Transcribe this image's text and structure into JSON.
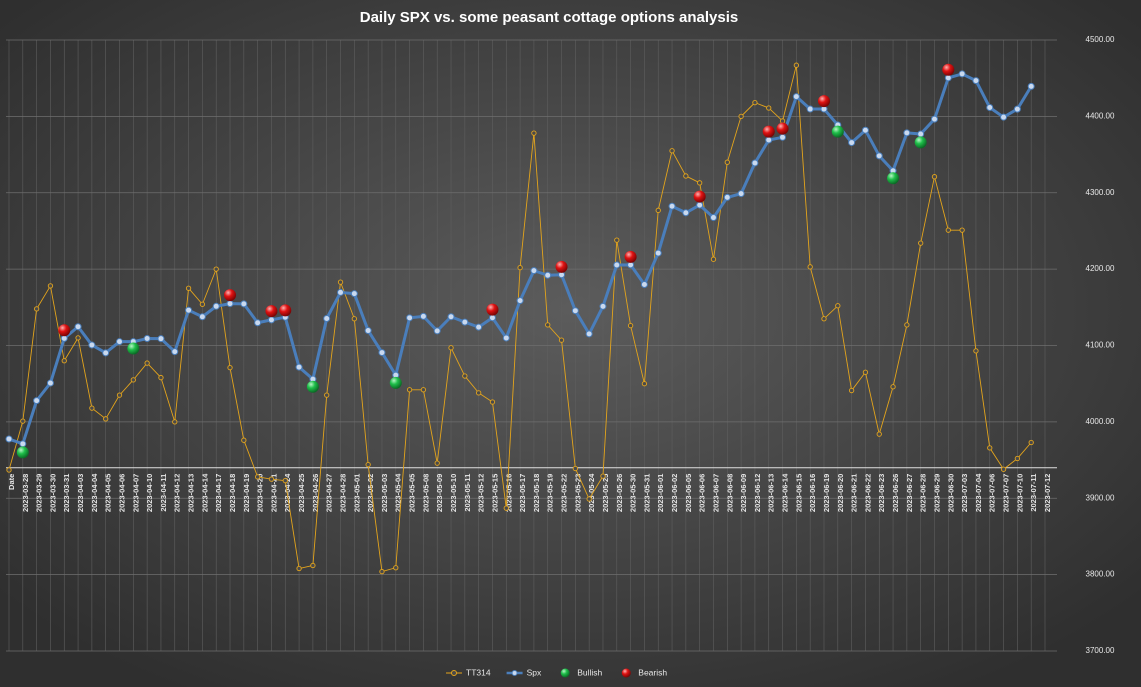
{
  "chart_data": {
    "type": "line",
    "title": "Daily SPX vs. some peasant cottage options analysis",
    "categories": [
      "Date",
      "2023-03-28",
      "2023-03-29",
      "2023-03-30",
      "2023-03-31",
      "2023-04-03",
      "2023-04-04",
      "2023-04-05",
      "2023-04-06",
      "2023-04-07",
      "2023-04-10",
      "2023-04-11",
      "2023-04-12",
      "2023-04-13",
      "2023-04-14",
      "2023-04-17",
      "2023-04-18",
      "2023-04-19",
      "2023-04-20",
      "2023-04-21",
      "2023-04-24",
      "2023-04-25",
      "2023-04-26",
      "2023-04-27",
      "2023-04-28",
      "2023-05-01",
      "2023-05-02",
      "2023-05-03",
      "2023-05-04",
      "2023-05-05",
      "2023-05-08",
      "2023-05-09",
      "2023-05-10",
      "2023-05-11",
      "2023-05-12",
      "2023-05-15",
      "2023-05-16",
      "2023-05-17",
      "2023-05-18",
      "2023-05-19",
      "2023-05-22",
      "2023-05-23",
      "2023-05-24",
      "2023-05-25",
      "2023-05-26",
      "2023-05-30",
      "2023-05-31",
      "2023-06-01",
      "2023-06-02",
      "2023-06-05",
      "2023-06-06",
      "2023-06-07",
      "2023-06-08",
      "2023-06-09",
      "2023-06-12",
      "2023-06-13",
      "2023-06-14",
      "2023-06-15",
      "2023-06-16",
      "2023-06-19",
      "2023-06-20",
      "2023-06-21",
      "2023-06-22",
      "2023-06-23",
      "2023-06-26",
      "2023-06-27",
      "2023-06-28",
      "2023-06-29",
      "2023-06-30",
      "2023-07-03",
      "2023-07-04",
      "2023-07-06",
      "2023-07-07",
      "2023-07-10",
      "2023-07-11",
      "2023-07-12"
    ],
    "series": [
      {
        "name": "TT314",
        "color": "#e3a41c",
        "style": "line-thin",
        "values": [
          3937,
          4001,
          4148,
          4178,
          4080,
          4110,
          4018,
          4004,
          4035,
          4055,
          4077,
          4058,
          4000,
          4175,
          4154,
          4200,
          4071,
          3976,
          3928,
          3925,
          3923,
          3808,
          3812,
          4035,
          4183,
          4135,
          3944,
          3804,
          3809,
          4042,
          4042,
          3946,
          4097,
          4060,
          4038,
          4026,
          3887,
          4202,
          4378,
          4127,
          4107,
          3939,
          3899,
          3929,
          4238,
          4126,
          4050,
          4277,
          4355,
          4322,
          4313,
          4213,
          4340,
          4400,
          4418,
          4411,
          4394,
          4467,
          4203,
          4135,
          4152,
          4041,
          4065,
          3984,
          4046,
          4127,
          4234,
          4321,
          4251,
          4251,
          4093,
          3966,
          3938,
          3952,
          3973,
          null
        ]
      },
      {
        "name": "Spx",
        "color": "#4a7ebb",
        "style": "line-thick",
        "values": [
          3977.53,
          3971.27,
          4027.81,
          4050.83,
          4109.31,
          4124.51,
          4100.6,
          4090.38,
          4105.02,
          4105.02,
          4109.11,
          4108.94,
          4091.95,
          4146.22,
          4137.64,
          4151.32,
          4154.87,
          4154.52,
          4129.79,
          4133.52,
          4137.04,
          4071.63,
          4055.99,
          4135.35,
          4169.48,
          4167.87,
          4119.58,
          4090.75,
          4061.22,
          4136.25,
          4138.12,
          4119.17,
          4137.64,
          4130.62,
          4124.08,
          4136.28,
          4109.9,
          4158.77,
          4198.05,
          4191.98,
          4192.63,
          4145.58,
          4115.24,
          4151.28,
          4205.45,
          4205.52,
          4179.83,
          4221.02,
          4282.37,
          4273.79,
          4283.85,
          4267.52,
          4293.93,
          4298.86,
          4338.93,
          4369.01,
          4372.59,
          4425.84,
          4409.59,
          4409.59,
          4388.71,
          4365.69,
          4381.89,
          4348.33,
          4328.82,
          4378.41,
          4376.86,
          4396.44,
          4450.38,
          4455.59,
          4446.82,
          4411.59,
          4398.95,
          4409.53,
          4439.26,
          null
        ]
      },
      {
        "name": "Bullish",
        "color": "#1fbf4a",
        "style": "markers",
        "values": [
          null,
          3960,
          null,
          null,
          null,
          null,
          null,
          null,
          null,
          4096,
          null,
          null,
          null,
          null,
          null,
          null,
          null,
          null,
          null,
          null,
          null,
          null,
          4046,
          null,
          null,
          null,
          null,
          null,
          4051,
          null,
          null,
          null,
          null,
          null,
          null,
          null,
          null,
          null,
          null,
          null,
          null,
          null,
          null,
          null,
          null,
          null,
          null,
          null,
          null,
          null,
          null,
          null,
          null,
          null,
          null,
          null,
          null,
          null,
          null,
          null,
          4380,
          null,
          null,
          null,
          4319,
          null,
          4366,
          null,
          null,
          null,
          null,
          null,
          null,
          null,
          null,
          null
        ]
      },
      {
        "name": "Bearish",
        "color": "#e01212",
        "style": "markers",
        "values": [
          null,
          null,
          null,
          null,
          4120,
          null,
          null,
          null,
          null,
          null,
          null,
          null,
          null,
          null,
          null,
          null,
          4166,
          null,
          null,
          4145,
          4146,
          null,
          null,
          null,
          null,
          null,
          null,
          null,
          null,
          null,
          null,
          null,
          null,
          null,
          null,
          4147,
          null,
          null,
          null,
          null,
          4203,
          null,
          null,
          null,
          null,
          4216,
          null,
          null,
          null,
          null,
          4295,
          null,
          null,
          null,
          null,
          4380,
          4384,
          null,
          null,
          4420,
          null,
          null,
          null,
          null,
          null,
          null,
          null,
          null,
          4461,
          null,
          null,
          null,
          null,
          null,
          null,
          null
        ]
      }
    ],
    "ylim": [
      3700,
      4500
    ],
    "yticks": [
      {
        "value": 3700,
        "label": "3700.00"
      },
      {
        "value": 3800,
        "label": "3800.00"
      },
      {
        "value": 3900,
        "label": "3900.00"
      },
      {
        "value": 4000,
        "label": "4000.00"
      },
      {
        "value": 4100,
        "label": "4100.00"
      },
      {
        "value": 4200,
        "label": "4200.00"
      },
      {
        "value": 4300,
        "label": "4300.00"
      },
      {
        "value": 4400,
        "label": "4400.00"
      },
      {
        "value": 4500,
        "label": "4500.00"
      }
    ],
    "yaxis_side": "right",
    "xaxis_at": 3940,
    "grid": true,
    "legend": "bottom"
  }
}
